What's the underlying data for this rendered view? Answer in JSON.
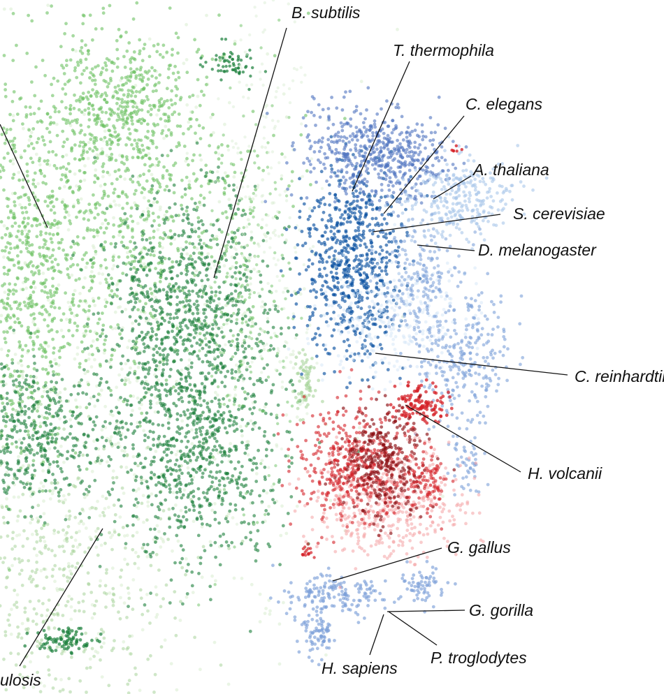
{
  "chart_data": {
    "type": "scatter",
    "title": "",
    "xlabel": "",
    "ylabel": "",
    "grid": false,
    "legend": "none",
    "series": [
      {
        "name": "",
        "group": "bacteria",
        "color": "#6cc163"
      },
      {
        "name": "",
        "group": "bacteria",
        "color": "#1a7f3b"
      },
      {
        "name": "",
        "group": "bacteria",
        "color": "#d8ecd0"
      },
      {
        "name": "",
        "group": "bacteria",
        "color": "#a7d49a"
      },
      {
        "name": "",
        "group": "eukaryota",
        "color": "#0a52a1"
      },
      {
        "name": "",
        "group": "eukaryota",
        "color": "#4f73bf"
      },
      {
        "name": "",
        "group": "eukaryota",
        "color": "#a8c7ea"
      },
      {
        "name": "",
        "group": "eukaryota",
        "color": "#d4e6f7"
      },
      {
        "name": "",
        "group": "eukaryota",
        "color": "#7ca0d8"
      },
      {
        "name": "",
        "group": "archaea",
        "color": "#d42027"
      },
      {
        "name": "",
        "group": "archaea",
        "color": "#8c1014"
      },
      {
        "name": "",
        "group": "archaea",
        "color": "#f4a3a4"
      }
    ],
    "annotations": [
      {
        "id": "b-subtilis",
        "text": "B. subtilis"
      },
      {
        "id": "t-thermophila",
        "text": "T. thermophila"
      },
      {
        "id": "c-elegans",
        "text": "C. elegans"
      },
      {
        "id": "a-thaliana",
        "text": "A. thaliana"
      },
      {
        "id": "s-cerevisiae",
        "text": "S. cerevisiae"
      },
      {
        "id": "d-melanogaster",
        "text": "D. melanogaster"
      },
      {
        "id": "c-reinhardtii",
        "text": "C. reinhardtii"
      },
      {
        "id": "h-volcanii",
        "text": "H. volcanii"
      },
      {
        "id": "g-gallus",
        "text": "G. gallus"
      },
      {
        "id": "g-gorilla",
        "text": "G. gorilla"
      },
      {
        "id": "p-troglodytes",
        "text": "P. troglodytes"
      },
      {
        "id": "h-sapiens",
        "text": "H. sapiens"
      },
      {
        "id": "m-tuberculosis-partial",
        "text": "ulosis"
      }
    ]
  }
}
